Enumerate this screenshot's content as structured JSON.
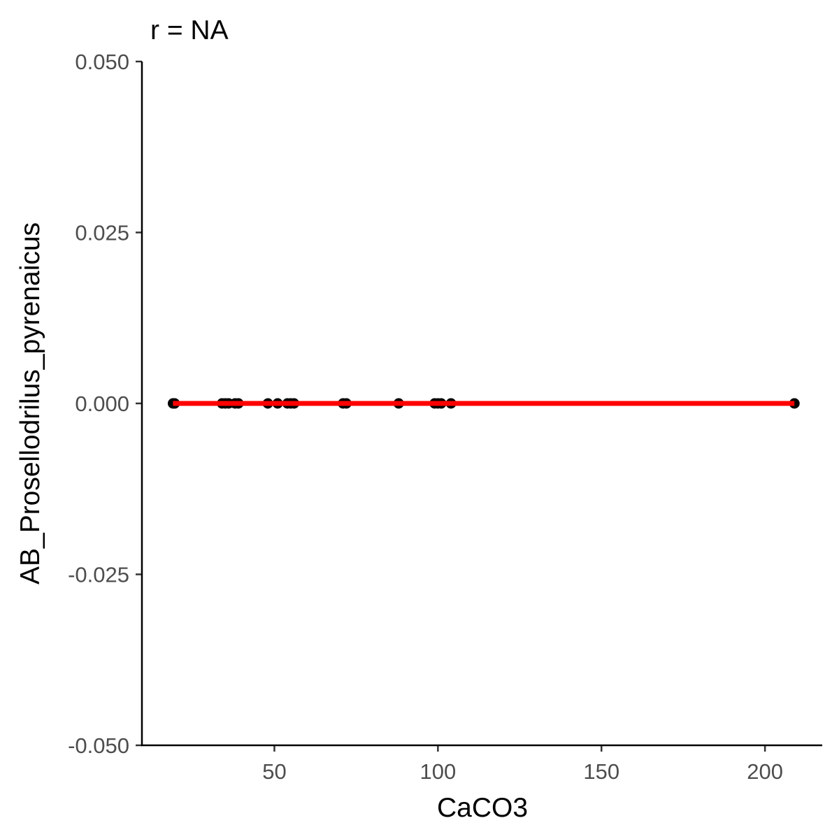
{
  "chart_data": {
    "type": "scatter",
    "title": "r = NA",
    "xlabel": "CaCO3",
    "ylabel": "AB_Prosellodrilus_pyrenaicus",
    "xlim": [
      9.5,
      217.5
    ],
    "ylim": [
      -0.05,
      0.05
    ],
    "x_ticks": [
      50,
      100,
      150,
      200
    ],
    "x_tick_labels": [
      "50",
      "100",
      "150",
      "200"
    ],
    "y_ticks": [
      -0.05,
      -0.025,
      0,
      0.025,
      0.05
    ],
    "y_tick_labels": [
      "-0.050",
      "-0.025",
      "0.000",
      "0.025",
      "0.050"
    ],
    "grid": false,
    "legend": "none",
    "points": {
      "x": [
        19,
        19.5,
        34,
        35,
        36,
        38,
        39,
        48,
        51,
        54,
        55,
        56,
        71,
        72,
        88,
        99,
        100,
        101,
        104,
        209
      ],
      "y": [
        0,
        0,
        0,
        0,
        0,
        0,
        0,
        0,
        0,
        0,
        0,
        0,
        0,
        0,
        0,
        0,
        0,
        0,
        0,
        0
      ],
      "color": "#000000"
    },
    "fit_line": {
      "x": [
        19,
        209
      ],
      "y": [
        0,
        0
      ],
      "color": "#ff0000"
    }
  }
}
